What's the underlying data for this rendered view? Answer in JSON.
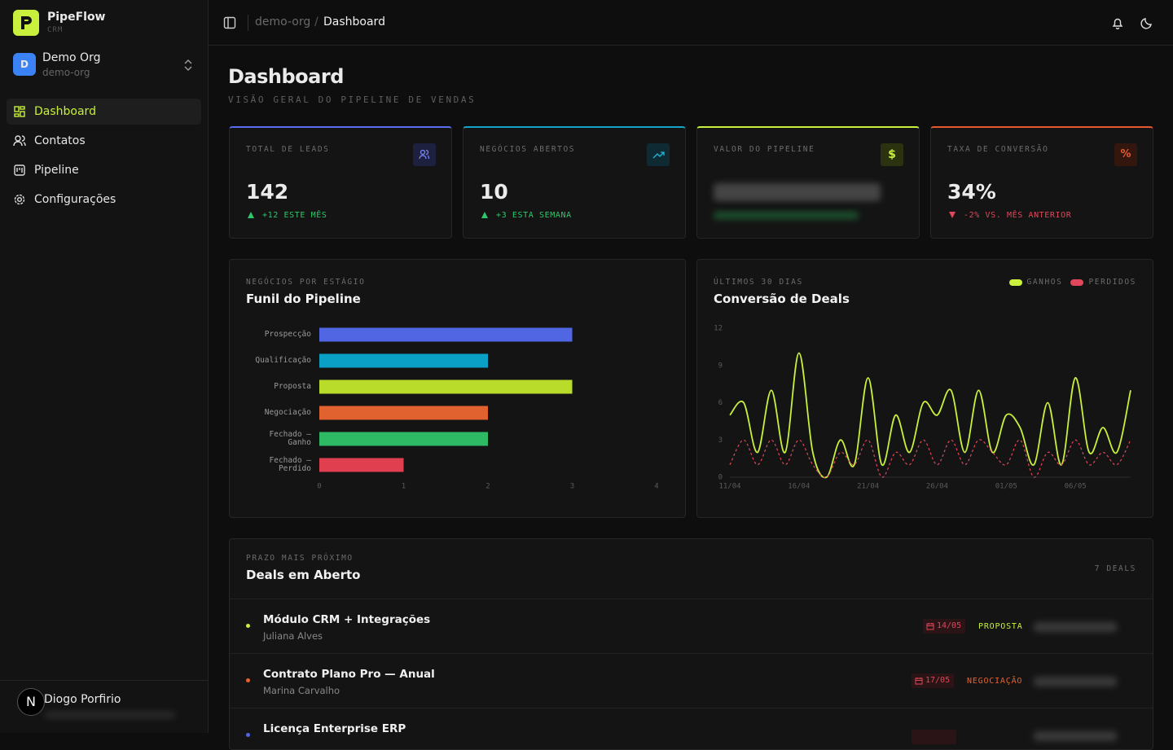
{
  "sidebar": {
    "brand": "PipeFlow",
    "brand_sub": "CRM",
    "org": {
      "initial": "D",
      "name": "Demo Org",
      "slug": "demo-org"
    },
    "nav": [
      "Dashboard",
      "Contatos",
      "Pipeline",
      "Configurações"
    ],
    "user": {
      "avatar": "N",
      "name": "Diogo Porfirio"
    }
  },
  "topbar": {
    "breadcrumb": [
      "demo-org",
      "Dashboard"
    ],
    "separator": "/"
  },
  "page": {
    "title": "Dashboard",
    "subtitle": "VISÃO GERAL DO PIPELINE DE VENDAS"
  },
  "kpis": [
    {
      "label": "TOTAL DE LEADS",
      "value": "142",
      "delta": "+12 ESTE MÊS"
    },
    {
      "label": "NEGÓCIOS ABERTOS",
      "value": "10",
      "delta": "+3 ESTA SEMANA"
    },
    {
      "label": "VALOR DO PIPELINE",
      "icon": "$"
    },
    {
      "label": "TAXA DE CONVERSÃO",
      "icon": "%",
      "value": "34%",
      "delta": "-2% VS. MÊS ANTERIOR"
    }
  ],
  "chart_data": [
    {
      "type": "bar",
      "orientation": "horizontal",
      "subtitle": "NEGÓCIOS POR ESTÁGIO",
      "title": "Funil do Pipeline",
      "categories": [
        "Prospecção",
        "Qualificação",
        "Proposta",
        "Negociação",
        "Fechado — Ganho",
        "Fechado — Perdido"
      ],
      "values": [
        3,
        2,
        3,
        2,
        2,
        1
      ],
      "colors": [
        "#5166e2",
        "#0aa0c6",
        "#b9dc2b",
        "#e2622f",
        "#2eb964",
        "#e03f4f"
      ],
      "xlim": [
        0,
        4
      ],
      "xticks": [
        0,
        1,
        2,
        3,
        4
      ]
    },
    {
      "type": "line",
      "subtitle": "ÚLTIMOS 30 DIAS",
      "title": "Conversão de Deals",
      "categories": [
        "11/04",
        null,
        null,
        null,
        null,
        "16/04",
        null,
        null,
        null,
        null,
        "21/04",
        null,
        null,
        null,
        null,
        "26/04",
        null,
        null,
        null,
        null,
        "01/05",
        null,
        null,
        null,
        null,
        "06/05",
        null,
        null,
        null,
        null
      ],
      "series": [
        {
          "name": "GANHOS",
          "color": "#c8f03c",
          "dash": false,
          "values": [
            5,
            6,
            2,
            7,
            2,
            10,
            2,
            0,
            3,
            1,
            8,
            1,
            5,
            2,
            6,
            5,
            7,
            2,
            7,
            2,
            5,
            4,
            1,
            6,
            1,
            8,
            2,
            4,
            2,
            7
          ]
        },
        {
          "name": "PERDIDOS",
          "color": "#e0475a",
          "dash": true,
          "values": [
            1,
            3,
            1,
            3,
            1,
            3,
            1,
            0,
            2,
            1,
            3,
            0,
            2,
            1,
            3,
            1,
            3,
            1,
            3,
            2,
            1,
            3,
            0,
            2,
            1,
            3,
            1,
            2,
            1,
            3
          ]
        }
      ],
      "ylim": [
        0,
        12
      ],
      "yticks": [
        0,
        3,
        6,
        9,
        12
      ],
      "legend": "top-right",
      "grid": false
    }
  ],
  "deals": {
    "subtitle": "PRAZO MAIS PRÓXIMO",
    "title": "Deals em Aberto",
    "count": "7 DEALS",
    "items": [
      {
        "title": "Módulo CRM + Integrações",
        "contact": "Juliana Alves",
        "date": "14/05",
        "stage": "PROPOSTA"
      },
      {
        "title": "Contrato Plano Pro — Anual",
        "contact": "Marina Carvalho",
        "date": "17/05",
        "stage": "NEGOCIAÇÃO"
      },
      {
        "title": "Licença Enterprise ERP"
      }
    ]
  }
}
